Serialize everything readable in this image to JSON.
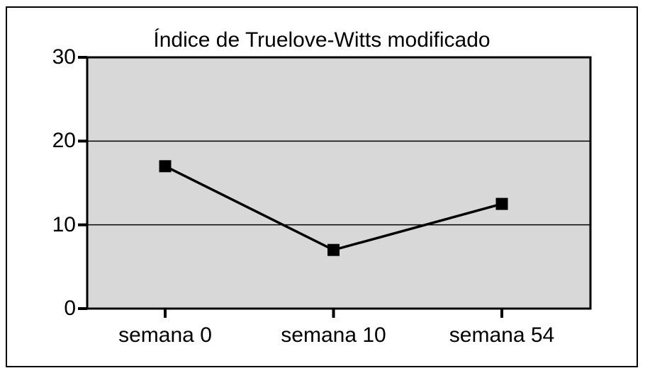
{
  "chart_data": {
    "type": "line",
    "title": "Índice de Truelove-Witts modificado",
    "categories": [
      "semana 0",
      "semana 10",
      "semana 54"
    ],
    "values": [
      17,
      7,
      12.5
    ],
    "xlabel": "",
    "ylabel": "",
    "ylim": [
      0,
      30
    ],
    "yticks": [
      0,
      10,
      20,
      30
    ],
    "ytick_labels": [
      "0",
      "10",
      "20",
      "30"
    ],
    "grid": true,
    "legend": false,
    "marker_style": "square",
    "colors": {
      "page_background": "#ffffff",
      "plot_background": "#d8d8d8",
      "line": "#000000",
      "marker": "#000000",
      "axis": "#000000",
      "gridline": "#000000",
      "text": "#000000",
      "frame_border": "#000000"
    }
  }
}
